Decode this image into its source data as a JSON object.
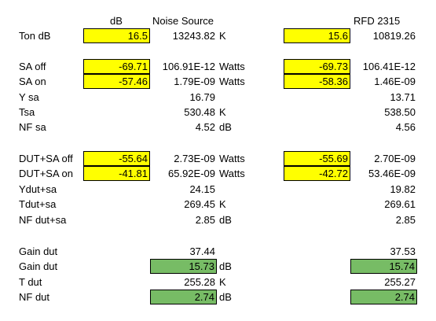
{
  "headers": {
    "db": "dB",
    "noise_source": "Noise Source",
    "rfd": "RFD 2315"
  },
  "rows": {
    "ton": {
      "label": "Ton dB",
      "ns_db": "16.5",
      "ns_val": "13243.82",
      "unit": "K",
      "rfd_db": "15.6",
      "rfd_val": "10819.26"
    },
    "sa_off": {
      "label": "SA off",
      "ns_db": "-69.71",
      "ns_val": "106.91E-12",
      "unit": "Watts",
      "rfd_db": "-69.73",
      "rfd_val": "106.41E-12"
    },
    "sa_on": {
      "label": "SA on",
      "ns_db": "-57.46",
      "ns_val": "1.79E-09",
      "unit": "Watts",
      "rfd_db": "-58.36",
      "rfd_val": "1.46E-09"
    },
    "y_sa": {
      "label": "Y sa",
      "ns_val": "16.79",
      "rfd_val": "13.71"
    },
    "tsa": {
      "label": "Tsa",
      "ns_val": "530.48",
      "unit": "K",
      "rfd_val": "538.50"
    },
    "nf_sa": {
      "label": "NF sa",
      "ns_val": "4.52",
      "unit": "dB",
      "rfd_val": "4.56"
    },
    "dut_sa_off": {
      "label": "DUT+SA off",
      "ns_db": "-55.64",
      "ns_val": "2.73E-09",
      "unit": "Watts",
      "rfd_db": "-55.69",
      "rfd_val": "2.70E-09"
    },
    "dut_sa_on": {
      "label": "DUT+SA on",
      "ns_db": "-41.81",
      "ns_val": "65.92E-09",
      "unit": "Watts",
      "rfd_db": "-42.72",
      "rfd_val": "53.46E-09"
    },
    "ydut_sa": {
      "label": "Ydut+sa",
      "ns_val": "24.15",
      "rfd_val": "19.82"
    },
    "tdut_sa": {
      "label": "Tdut+sa",
      "ns_val": "269.45",
      "unit": "K",
      "rfd_val": "269.61"
    },
    "nf_dut_sa": {
      "label": "NF dut+sa",
      "ns_val": "2.85",
      "unit": "dB",
      "rfd_val": "2.85"
    },
    "gain_dut_1": {
      "label": "Gain dut",
      "ns_val": "37.44",
      "rfd_val": "37.53"
    },
    "gain_dut_2": {
      "label": "Gain dut",
      "ns_val": "15.73",
      "unit": "dB",
      "rfd_val": "15.74"
    },
    "t_dut": {
      "label": "T dut",
      "ns_val": "255.28",
      "unit": "K",
      "rfd_val": "255.27"
    },
    "nf_dut": {
      "label": "NF dut",
      "ns_val": "2.74",
      "unit": "dB",
      "rfd_val": "2.74"
    }
  },
  "colors": {
    "input_fill": "#ffff00",
    "result_fill": "#77bc65",
    "grid_line": "#000000"
  }
}
